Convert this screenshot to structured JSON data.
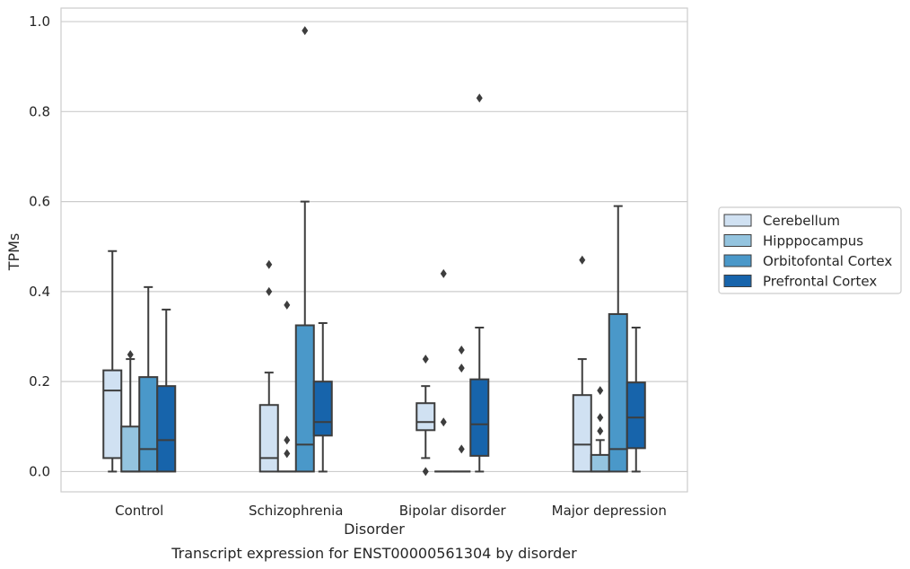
{
  "chart_data": {
    "type": "box",
    "title": "",
    "caption": "Transcript expression for ENST00000561304 by disorder",
    "xlabel": "Disorder",
    "ylabel": "TPMs",
    "ylim": [
      -0.045,
      1.03
    ],
    "yticks": [
      0.0,
      0.2,
      0.4,
      0.6,
      0.8,
      1.0
    ],
    "ytick_labels": [
      "0.0",
      "0.2",
      "0.4",
      "0.6",
      "0.8",
      "1.0"
    ],
    "grid": true,
    "legend_position": "right",
    "categories": [
      "Control",
      "Schizophrenia",
      "Bipolar disorder",
      "Major depression"
    ],
    "series": [
      {
        "name": "Cerebellum",
        "color": "#d0e1f2",
        "boxes": [
          {
            "whislo": 0.0,
            "q1": 0.03,
            "med": 0.18,
            "q3": 0.225,
            "whishi": 0.49,
            "fliers": []
          },
          {
            "whislo": 0.0,
            "q1": 0.0,
            "med": 0.03,
            "q3": 0.148,
            "whishi": 0.22,
            "fliers": [
              0.4,
              0.46
            ]
          },
          {
            "whislo": 0.03,
            "q1": 0.092,
            "med": 0.11,
            "q3": 0.152,
            "whishi": 0.19,
            "fliers": [
              0.0,
              0.25
            ]
          },
          {
            "whislo": 0.0,
            "q1": 0.0,
            "med": 0.06,
            "q3": 0.17,
            "whishi": 0.25,
            "fliers": [
              0.47
            ]
          }
        ]
      },
      {
        "name": "Hipppocampus",
        "color": "#94c4df",
        "boxes": [
          {
            "whislo": 0.0,
            "q1": 0.0,
            "med": 0.0,
            "q3": 0.1,
            "whishi": 0.25,
            "fliers": [
              0.26
            ]
          },
          {
            "whislo": 0.0,
            "q1": 0.0,
            "med": 0.0,
            "q3": 0.0,
            "whishi": 0.0,
            "fliers": [
              0.04,
              0.07,
              0.37
            ]
          },
          {
            "whislo": 0.0,
            "q1": 0.0,
            "med": 0.0,
            "q3": 0.0,
            "whishi": 0.0,
            "fliers": [
              0.11,
              0.44
            ]
          },
          {
            "whislo": 0.0,
            "q1": 0.0,
            "med": 0.0,
            "q3": 0.037,
            "whishi": 0.07,
            "fliers": [
              0.09,
              0.12,
              0.18
            ]
          }
        ]
      },
      {
        "name": "Orbitofontal Cortex",
        "color": "#4a98c9",
        "boxes": [
          {
            "whislo": 0.0,
            "q1": 0.0,
            "med": 0.05,
            "q3": 0.21,
            "whishi": 0.41,
            "fliers": []
          },
          {
            "whislo": 0.0,
            "q1": 0.0,
            "med": 0.06,
            "q3": 0.325,
            "whishi": 0.6,
            "fliers": [
              0.98
            ]
          },
          {
            "whislo": 0.0,
            "q1": 0.0,
            "med": 0.0,
            "q3": 0.0,
            "whishi": 0.0,
            "fliers": [
              0.05,
              0.23,
              0.27
            ]
          },
          {
            "whislo": 0.0,
            "q1": 0.0,
            "med": 0.05,
            "q3": 0.35,
            "whishi": 0.59,
            "fliers": []
          }
        ]
      },
      {
        "name": "Prefrontal Cortex",
        "color": "#1764ab",
        "boxes": [
          {
            "whislo": 0.0,
            "q1": 0.0,
            "med": 0.07,
            "q3": 0.19,
            "whishi": 0.36,
            "fliers": []
          },
          {
            "whislo": 0.0,
            "q1": 0.08,
            "med": 0.11,
            "q3": 0.2,
            "whishi": 0.33,
            "fliers": []
          },
          {
            "whislo": 0.0,
            "q1": 0.035,
            "med": 0.105,
            "q3": 0.205,
            "whishi": 0.32,
            "fliers": [
              0.83
            ]
          },
          {
            "whislo": 0.0,
            "q1": 0.052,
            "med": 0.12,
            "q3": 0.198,
            "whishi": 0.32,
            "fliers": []
          }
        ]
      }
    ]
  }
}
